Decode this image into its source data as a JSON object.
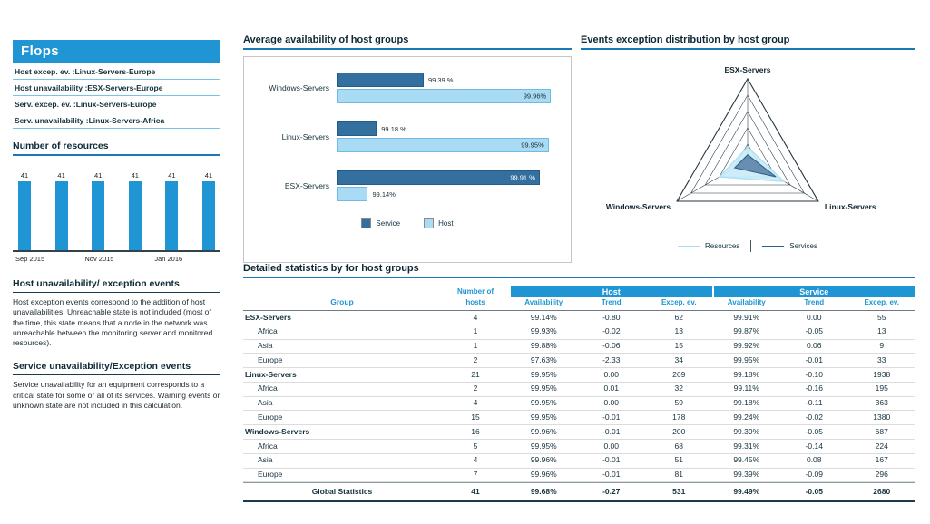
{
  "colors": {
    "primary": "#2095d3",
    "service_bar": "#34709f",
    "host_bar": "#a9dbf4",
    "radar_resources_fill": "#c9ebf8",
    "radar_resources_line": "#a5dff2",
    "radar_services_fill": "#5f87aa",
    "radar_services_line": "#2d5f8a"
  },
  "sidebar": {
    "title": "Flops",
    "flops": [
      {
        "label": "Host excep. ev. :",
        "value": "Linux-Servers-Europe"
      },
      {
        "label": "Host unavailability :",
        "value": "ESX-Servers-Europe"
      },
      {
        "label": "Serv. excep. ev. :",
        "value": "Linux-Servers-Europe"
      },
      {
        "label": "Serv. unavailability :",
        "value": "Linux-Servers-Africa"
      }
    ],
    "host_info": {
      "title": "Host unavailability/ exception events",
      "body": "Host exception events correspond to the addition of host unavailabilities. Unreachable state is not included (most of the time, this state means that a node in the network was unreachable between the monitoring server and monitored resources)."
    },
    "service_info": {
      "title": "Service unavailability/Exception events",
      "body": "Service unavailability for an equipment corresponds to a critical state for some or all of its services. Warning events or unknown state are not included in this calculation."
    }
  },
  "chart_data": [
    {
      "id": "resources",
      "type": "bar",
      "title": "Number of resources",
      "values": [
        41,
        41,
        41,
        41,
        41,
        41
      ],
      "x_ticks": [
        "Sep 2015",
        "Nov 2015",
        "Jan 2016"
      ],
      "ylim": [
        0,
        41
      ]
    },
    {
      "id": "availability",
      "type": "bar",
      "orientation": "horizontal",
      "title": "Average availability of host groups",
      "categories": [
        "Windows-Servers",
        "Linux-Servers",
        "ESX-Servers"
      ],
      "series": [
        {
          "name": "Service",
          "values": [
            99.39,
            99.18,
            99.91
          ],
          "labels": [
            "99.39 %",
            "99.18 %",
            "99.91 %"
          ]
        },
        {
          "name": "Host",
          "values": [
            99.96,
            99.95,
            99.14
          ],
          "labels": [
            "99.96%",
            "99.95%",
            "99.14%"
          ]
        }
      ],
      "value_axis_range": [
        99,
        100
      ],
      "legend": [
        "Service",
        "Host"
      ]
    },
    {
      "id": "radar",
      "type": "radar",
      "title": "Events exception distribution by host group",
      "axes": [
        "ESX-Servers",
        "Linux-Servers",
        "Windows-Servers"
      ],
      "series": [
        {
          "name": "Resources",
          "values": [
            62,
            269,
            200
          ]
        },
        {
          "name": "Services",
          "values": [
            55,
            1938,
            687
          ]
        }
      ],
      "legend": [
        "Resources",
        "Services"
      ]
    },
    {
      "id": "detailed-stats",
      "type": "table",
      "title": "Detailed statistics by for host groups",
      "col_headers": {
        "group": "Group",
        "hosts_top": "Number of",
        "hosts_bottom": "hosts",
        "host": "Host",
        "service": "Service",
        "availability": "Availability",
        "trend": "Trend",
        "excep": "Excep. ev."
      },
      "rows": [
        {
          "group": "ESX-Servers",
          "level": 0,
          "cells": [
            "4",
            "99.14%",
            "-0.80",
            "62",
            "99.91%",
            "0.00",
            "55"
          ]
        },
        {
          "group": "Africa",
          "level": 1,
          "cells": [
            "1",
            "99.93%",
            "-0.02",
            "13",
            "99.87%",
            "-0.05",
            "13"
          ]
        },
        {
          "group": "Asia",
          "level": 1,
          "cells": [
            "1",
            "99.88%",
            "-0.06",
            "15",
            "99.92%",
            "0.06",
            "9"
          ]
        },
        {
          "group": "Europe",
          "level": 1,
          "cells": [
            "2",
            "97.63%",
            "-2.33",
            "34",
            "99.95%",
            "-0.01",
            "33"
          ]
        },
        {
          "group": "Linux-Servers",
          "level": 0,
          "cells": [
            "21",
            "99.95%",
            "0.00",
            "269",
            "99.18%",
            "-0.10",
            "1938"
          ]
        },
        {
          "group": "Africa",
          "level": 1,
          "cells": [
            "2",
            "99.95%",
            "0.01",
            "32",
            "99.11%",
            "-0.16",
            "195"
          ]
        },
        {
          "group": "Asia",
          "level": 1,
          "cells": [
            "4",
            "99.95%",
            "0.00",
            "59",
            "99.18%",
            "-0.11",
            "363"
          ]
        },
        {
          "group": "Europe",
          "level": 1,
          "cells": [
            "15",
            "99.95%",
            "-0.01",
            "178",
            "99.24%",
            "-0.02",
            "1380"
          ]
        },
        {
          "group": "Windows-Servers",
          "level": 0,
          "cells": [
            "16",
            "99.96%",
            "-0.01",
            "200",
            "99.39%",
            "-0.05",
            "687"
          ]
        },
        {
          "group": "Africa",
          "level": 1,
          "cells": [
            "5",
            "99.95%",
            "0.00",
            "68",
            "99.31%",
            "-0.14",
            "224"
          ]
        },
        {
          "group": "Asia",
          "level": 1,
          "cells": [
            "4",
            "99.96%",
            "-0.01",
            "51",
            "99.45%",
            "0.08",
            "167"
          ]
        },
        {
          "group": "Europe",
          "level": 1,
          "cells": [
            "7",
            "99.96%",
            "-0.01",
            "81",
            "99.39%",
            "-0.09",
            "296"
          ]
        }
      ],
      "global_row": {
        "group": "Global Statistics",
        "cells": [
          "41",
          "99.68%",
          "-0.27",
          "531",
          "99.49%",
          "-0.05",
          "2680"
        ]
      }
    }
  ]
}
